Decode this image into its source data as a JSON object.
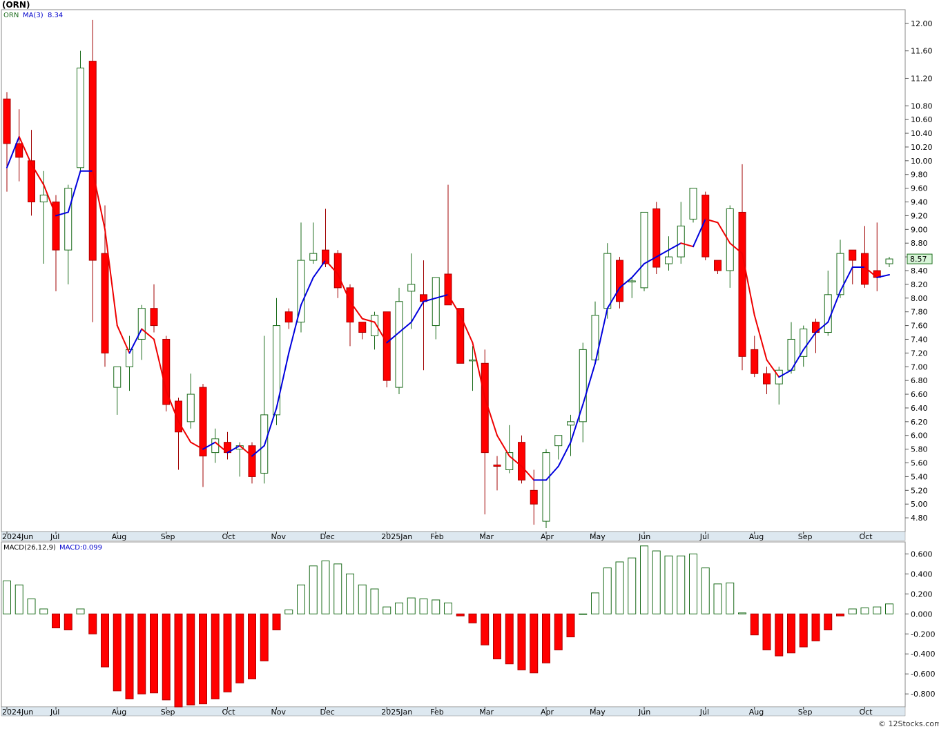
{
  "title": "(ORN)",
  "legend": {
    "ticker": "ORN",
    "ma_label": "MA(3)",
    "ma_value": "8.34",
    "last_price": "8.57"
  },
  "macd_legend": {
    "params": "MACD(26,12,9)",
    "value": "MACD:0.099"
  },
  "watermark": "© 12Stocks.com",
  "colors": {
    "up": "#1a6b1a",
    "down": "#ff0000",
    "ma_up": "#0000dd",
    "ma_down": "#ee0000",
    "grid": "#c8c8c8",
    "axis_bar": "#dde8f0"
  },
  "month_labels": [
    "2024Jun",
    "Jul",
    "Aug",
    "Sep",
    "Oct",
    "Nov",
    "Dec",
    "2025Jan",
    "Feb",
    "Mar",
    "Apr",
    "May",
    "Jun",
    "Jul",
    "Aug",
    "Sep",
    "Oct"
  ],
  "chart_data": [
    {
      "type": "candlestick",
      "ylim": [
        4.6,
        12.2
      ],
      "y_ticks": [
        4.8,
        5.0,
        5.2,
        5.4,
        5.6,
        5.8,
        6.0,
        6.2,
        6.4,
        6.6,
        6.8,
        7.0,
        7.2,
        7.4,
        7.6,
        7.8,
        8.0,
        8.2,
        8.4,
        8.6,
        8.8,
        9.0,
        9.2,
        9.4,
        9.6,
        9.8,
        10.0,
        10.2,
        10.4,
        10.6,
        10.8,
        11.2,
        11.6,
        12.0
      ],
      "y_tick_labels": [
        "4.80",
        "5.00",
        "5.20",
        "5.40",
        "5.60",
        "5.80",
        "6.00",
        "6.20",
        "6.40",
        "6.60",
        "6.80",
        "7.00",
        "7.20",
        "7.40",
        "7.60",
        "7.80",
        "8.00",
        "8.20",
        "8.40",
        "8.60",
        "8.80",
        "9.00",
        "9.20",
        "9.40",
        "9.60",
        "9.80",
        "10.00",
        "10.20",
        "10.40",
        "10.60",
        "10.80",
        "11.20",
        "11.60",
        "12.00"
      ],
      "candles": [
        {
          "o": 10.9,
          "h": 11.0,
          "l": 9.55,
          "c": 10.25
        },
        {
          "o": 10.25,
          "h": 10.75,
          "l": 9.7,
          "c": 10.05
        },
        {
          "o": 10.0,
          "h": 10.45,
          "l": 9.2,
          "c": 9.4
        },
        {
          "o": 9.4,
          "h": 9.85,
          "l": 8.5,
          "c": 9.5
        },
        {
          "o": 9.4,
          "h": 9.5,
          "l": 8.1,
          "c": 8.7
        },
        {
          "o": 8.7,
          "h": 9.65,
          "l": 8.2,
          "c": 9.6
        },
        {
          "o": 9.9,
          "h": 11.6,
          "l": 9.85,
          "c": 11.35
        },
        {
          "o": 11.45,
          "h": 12.05,
          "l": 7.65,
          "c": 8.55
        },
        {
          "o": 8.65,
          "h": 9.35,
          "l": 7.0,
          "c": 7.2
        },
        {
          "o": 6.7,
          "h": 7.0,
          "l": 6.3,
          "c": 7.0
        },
        {
          "o": 7.0,
          "h": 7.45,
          "l": 6.65,
          "c": 7.25
        },
        {
          "o": 7.4,
          "h": 7.9,
          "l": 7.1,
          "c": 7.85
        },
        {
          "o": 7.85,
          "h": 8.2,
          "l": 7.5,
          "c": 7.6
        },
        {
          "o": 7.4,
          "h": 7.45,
          "l": 6.35,
          "c": 6.45
        },
        {
          "o": 6.5,
          "h": 6.55,
          "l": 5.5,
          "c": 6.05
        },
        {
          "o": 6.2,
          "h": 6.9,
          "l": 6.1,
          "c": 6.6
        },
        {
          "o": 6.7,
          "h": 6.75,
          "l": 5.25,
          "c": 5.7
        },
        {
          "o": 5.75,
          "h": 6.1,
          "l": 5.6,
          "c": 5.95
        },
        {
          "o": 5.9,
          "h": 6.05,
          "l": 5.65,
          "c": 5.75
        },
        {
          "o": 5.8,
          "h": 5.9,
          "l": 5.4,
          "c": 5.85
        },
        {
          "o": 5.85,
          "h": 5.9,
          "l": 5.3,
          "c": 5.4
        },
        {
          "o": 5.45,
          "h": 7.45,
          "l": 5.3,
          "c": 6.3
        },
        {
          "o": 6.3,
          "h": 8.0,
          "l": 6.15,
          "c": 7.6
        },
        {
          "o": 7.8,
          "h": 7.85,
          "l": 7.55,
          "c": 7.65
        },
        {
          "o": 7.65,
          "h": 9.1,
          "l": 7.5,
          "c": 8.55
        },
        {
          "o": 8.55,
          "h": 9.1,
          "l": 8.5,
          "c": 8.65
        },
        {
          "o": 8.7,
          "h": 9.3,
          "l": 8.45,
          "c": 8.5
        },
        {
          "o": 8.65,
          "h": 8.7,
          "l": 8.0,
          "c": 8.15
        },
        {
          "o": 8.15,
          "h": 8.2,
          "l": 7.3,
          "c": 7.65
        },
        {
          "o": 7.65,
          "h": 7.65,
          "l": 7.4,
          "c": 7.5
        },
        {
          "o": 7.45,
          "h": 7.8,
          "l": 7.25,
          "c": 7.75
        },
        {
          "o": 7.8,
          "h": 7.8,
          "l": 6.7,
          "c": 6.8
        },
        {
          "o": 6.7,
          "h": 8.15,
          "l": 6.6,
          "c": 7.95
        },
        {
          "o": 8.1,
          "h": 8.65,
          "l": 7.55,
          "c": 8.2
        },
        {
          "o": 8.05,
          "h": 8.55,
          "l": 6.95,
          "c": 7.95
        },
        {
          "o": 7.6,
          "h": 8.3,
          "l": 7.4,
          "c": 8.3
        },
        {
          "o": 8.35,
          "h": 9.65,
          "l": 7.9,
          "c": 7.9
        },
        {
          "o": 7.85,
          "h": 7.85,
          "l": 7.05,
          "c": 7.05
        },
        {
          "o": 7.1,
          "h": 7.3,
          "l": 6.65,
          "c": 7.1
        },
        {
          "o": 7.05,
          "h": 7.25,
          "l": 4.85,
          "c": 5.75
        },
        {
          "o": 5.57,
          "h": 5.7,
          "l": 5.2,
          "c": 5.55
        },
        {
          "o": 5.5,
          "h": 6.15,
          "l": 5.45,
          "c": 5.75
        },
        {
          "o": 5.9,
          "h": 6.0,
          "l": 5.3,
          "c": 5.35
        },
        {
          "o": 5.2,
          "h": 5.5,
          "l": 4.7,
          "c": 5.0
        },
        {
          "o": 4.75,
          "h": 5.8,
          "l": 4.65,
          "c": 5.75
        },
        {
          "o": 5.85,
          "h": 6.0,
          "l": 5.65,
          "c": 6.0
        },
        {
          "o": 6.15,
          "h": 6.3,
          "l": 5.7,
          "c": 6.2
        },
        {
          "o": 6.2,
          "h": 7.35,
          "l": 5.9,
          "c": 7.25
        },
        {
          "o": 7.1,
          "h": 7.95,
          "l": 7.05,
          "c": 7.75
        },
        {
          "o": 7.85,
          "h": 8.8,
          "l": 7.7,
          "c": 8.65
        },
        {
          "o": 8.55,
          "h": 8.6,
          "l": 7.85,
          "c": 7.95
        },
        {
          "o": 8.25,
          "h": 8.3,
          "l": 8.0,
          "c": 8.25
        },
        {
          "o": 8.15,
          "h": 9.25,
          "l": 8.1,
          "c": 9.25
        },
        {
          "o": 9.3,
          "h": 9.4,
          "l": 8.35,
          "c": 8.45
        },
        {
          "o": 8.5,
          "h": 8.9,
          "l": 8.4,
          "c": 8.6
        },
        {
          "o": 8.6,
          "h": 9.4,
          "l": 8.5,
          "c": 9.05
        },
        {
          "o": 9.15,
          "h": 9.6,
          "l": 9.1,
          "c": 9.6
        },
        {
          "o": 9.5,
          "h": 9.55,
          "l": 8.55,
          "c": 8.6
        },
        {
          "o": 8.55,
          "h": 8.55,
          "l": 8.35,
          "c": 8.4
        },
        {
          "o": 8.4,
          "h": 9.35,
          "l": 8.15,
          "c": 9.3
        },
        {
          "o": 9.25,
          "h": 9.95,
          "l": 6.95,
          "c": 7.15
        },
        {
          "o": 7.25,
          "h": 7.45,
          "l": 6.85,
          "c": 6.9
        },
        {
          "o": 6.9,
          "h": 7.0,
          "l": 6.6,
          "c": 6.75
        },
        {
          "o": 6.75,
          "h": 7.0,
          "l": 6.45,
          "c": 6.95
        },
        {
          "o": 6.95,
          "h": 7.65,
          "l": 6.9,
          "c": 7.4
        },
        {
          "o": 7.15,
          "h": 7.6,
          "l": 7.0,
          "c": 7.55
        },
        {
          "o": 7.65,
          "h": 7.7,
          "l": 7.2,
          "c": 7.5
        },
        {
          "o": 7.5,
          "h": 8.4,
          "l": 7.45,
          "c": 8.05
        },
        {
          "o": 8.05,
          "h": 8.85,
          "l": 8.0,
          "c": 8.65
        },
        {
          "o": 8.7,
          "h": 8.7,
          "l": 8.2,
          "c": 8.55
        },
        {
          "o": 8.65,
          "h": 9.05,
          "l": 8.15,
          "c": 8.2
        },
        {
          "o": 8.4,
          "h": 9.1,
          "l": 8.1,
          "c": 8.3
        },
        {
          "o": 8.5,
          "h": 8.6,
          "l": 8.45,
          "c": 8.57
        }
      ],
      "ma": [
        9.9,
        10.35,
        9.95,
        9.65,
        9.2,
        9.25,
        9.85,
        9.85,
        9.0,
        7.6,
        7.2,
        7.55,
        7.4,
        6.65,
        6.2,
        5.9,
        5.8,
        5.9,
        5.75,
        5.85,
        5.7,
        5.85,
        6.4,
        7.2,
        7.9,
        8.3,
        8.55,
        8.35,
        7.95,
        7.7,
        7.65,
        7.35,
        7.5,
        7.65,
        7.95,
        8.0,
        8.05,
        7.75,
        7.35,
        6.55,
        6.0,
        5.7,
        5.55,
        5.35,
        5.35,
        5.55,
        5.9,
        6.45,
        7.05,
        7.85,
        8.15,
        8.3,
        8.5,
        8.6,
        8.7,
        8.8,
        8.75,
        9.15,
        9.1,
        8.8,
        8.65,
        7.75,
        7.1,
        6.85,
        6.95,
        7.25,
        7.5,
        7.65,
        8.1,
        8.45,
        8.45,
        8.3,
        8.34
      ]
    },
    {
      "type": "bar",
      "title": "MACD(26,12,9)",
      "ylim": [
        -0.93,
        0.72
      ],
      "y_ticks": [
        -0.8,
        -0.6,
        -0.4,
        -0.2,
        0.0,
        0.2,
        0.4,
        0.6
      ],
      "y_tick_labels": [
        "-0.800",
        "-0.600",
        "-0.400",
        "-0.200",
        "0.000",
        "0.200",
        "0.400",
        "0.600"
      ],
      "values": [
        0.33,
        0.29,
        0.15,
        0.05,
        -0.14,
        -0.16,
        0.05,
        -0.2,
        -0.53,
        -0.77,
        -0.85,
        -0.8,
        -0.79,
        -0.86,
        -0.93,
        -0.91,
        -0.9,
        -0.85,
        -0.78,
        -0.69,
        -0.65,
        -0.47,
        -0.16,
        0.04,
        0.29,
        0.48,
        0.53,
        0.5,
        0.4,
        0.29,
        0.25,
        0.07,
        0.11,
        0.16,
        0.15,
        0.14,
        0.11,
        -0.02,
        -0.09,
        -0.31,
        -0.45,
        -0.5,
        -0.56,
        -0.59,
        -0.49,
        -0.36,
        -0.23,
        0.0,
        0.21,
        0.46,
        0.52,
        0.56,
        0.68,
        0.63,
        0.58,
        0.58,
        0.6,
        0.46,
        0.3,
        0.31,
        0.01,
        -0.21,
        -0.36,
        -0.42,
        -0.39,
        -0.33,
        -0.27,
        -0.16,
        -0.02,
        0.05,
        0.06,
        0.07,
        0.1
      ]
    }
  ]
}
